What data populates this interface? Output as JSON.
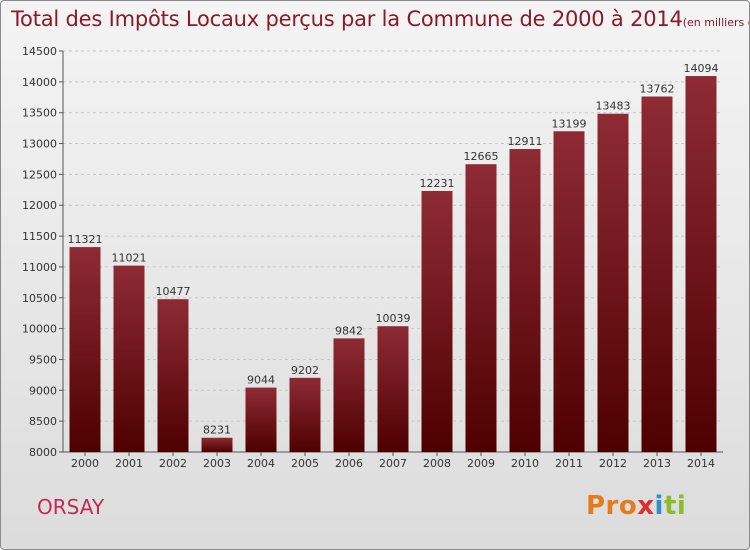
{
  "chart_data": {
    "type": "bar",
    "title": "Total des Impôts Locaux perçus par la Commune de 2000 à 2014",
    "subtitle": "(en milliers d'€)",
    "categories": [
      "2000",
      "2001",
      "2002",
      "2003",
      "2004",
      "2005",
      "2006",
      "2007",
      "2008",
      "2009",
      "2010",
      "2011",
      "2012",
      "2013",
      "2014"
    ],
    "values": [
      11321,
      11021,
      10477,
      8231,
      9044,
      9202,
      9842,
      10039,
      12231,
      12665,
      12911,
      13199,
      13483,
      13762,
      14094
    ],
    "ylim": [
      8000,
      14500
    ],
    "yticks": [
      8000,
      8500,
      9000,
      9500,
      10000,
      10500,
      11000,
      11500,
      12000,
      12500,
      13000,
      13500,
      14000,
      14500
    ],
    "xlabel": "",
    "ylabel": "",
    "grid": true,
    "bar_color_top": "#8e2b35",
    "bar_color_bottom": "#4e0000"
  },
  "commune": "ORSAY",
  "logo": {
    "part1": "Pro",
    "part2": "x",
    "part3": "i",
    "part4": "ti"
  }
}
